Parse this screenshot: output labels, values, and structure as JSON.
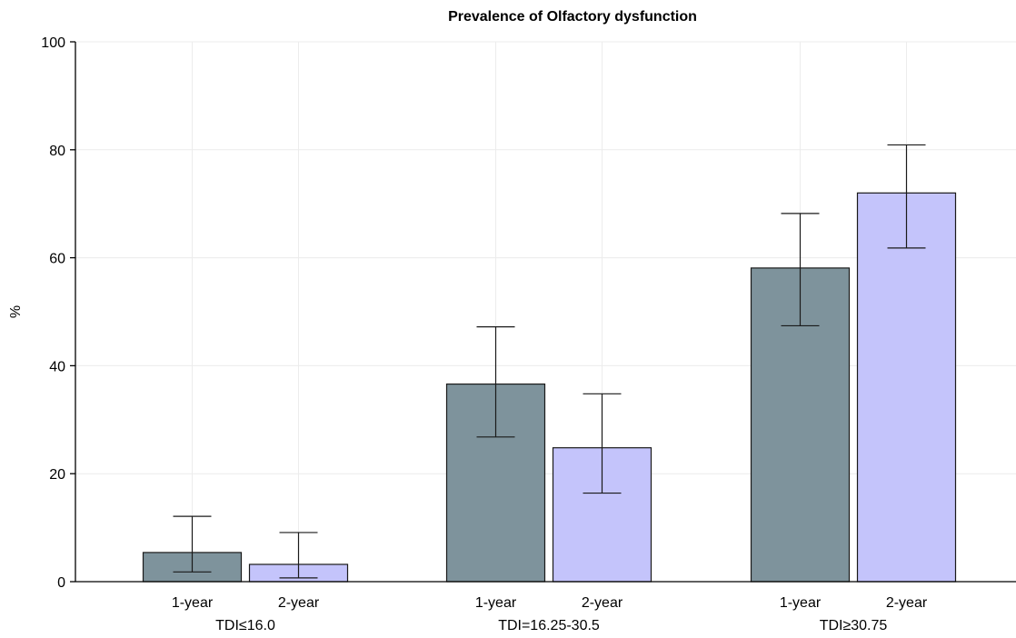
{
  "chart_data": {
    "type": "bar",
    "title": "Prevalence of Olfactory dysfunction",
    "ylabel": "%",
    "xlabel": "",
    "ylim": [
      0,
      100
    ],
    "yticks": [
      0,
      20,
      40,
      60,
      80,
      100
    ],
    "grid": true,
    "groups": [
      "TDI≤16.0",
      "TDI=16.25-30.5",
      "TDI≥30.75"
    ],
    "subcategories": [
      "1-year",
      "2-year"
    ],
    "colors": {
      "1-year": "#7e939c",
      "2-year": "#c4c4fb"
    },
    "series": [
      {
        "subcategory": "1-year",
        "values": [
          5.4,
          36.6,
          58.1
        ],
        "ci_low": [
          1.8,
          26.8,
          47.4
        ],
        "ci_high": [
          12.1,
          47.2,
          68.2
        ]
      },
      {
        "subcategory": "2-year",
        "values": [
          3.2,
          24.8,
          72.0
        ],
        "ci_low": [
          0.7,
          16.4,
          61.8
        ],
        "ci_high": [
          9.1,
          34.8,
          80.9
        ]
      }
    ]
  }
}
